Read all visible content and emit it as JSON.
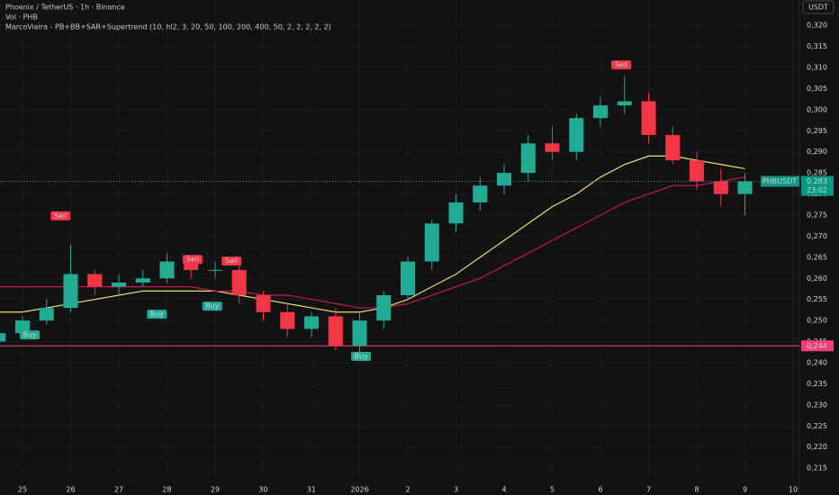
{
  "chart_data": {
    "type": "candlestick",
    "title": "Phoenix / TetherUS · 1h · Binance",
    "subtitle": "Vol · PHB",
    "indicator": "MarcoVieira - PB+BB+SAR+Supertrend (10, hl2, 3, 20, 50, 100, 200, 400, 50, 2, 2, 2, 2, 2)",
    "currency": "USDT",
    "x": [
      -0.5,
      0,
      0.5,
      1,
      1.5,
      2,
      2.5,
      3,
      3.5,
      4,
      4.5,
      5,
      5.5,
      6,
      6.5,
      7,
      7.5,
      8,
      8.5,
      9,
      9.5,
      10,
      10.5,
      11,
      11.5,
      12,
      12.5,
      13,
      13.5,
      14,
      14.5,
      15
    ],
    "open": [
      0.245,
      0.247,
      0.25,
      0.253,
      0.261,
      0.258,
      0.259,
      0.26,
      0.264,
      0.262,
      0.262,
      0.256,
      0.252,
      0.248,
      0.251,
      0.244,
      0.25,
      0.256,
      0.264,
      0.273,
      0.278,
      0.282,
      0.285,
      0.292,
      0.29,
      0.298,
      0.301,
      0.302,
      0.294,
      0.288,
      0.283,
      0.28
    ],
    "high": [
      0.249,
      0.251,
      0.255,
      0.268,
      0.262,
      0.261,
      0.262,
      0.266,
      0.265,
      0.264,
      0.263,
      0.257,
      0.254,
      0.252,
      0.253,
      0.252,
      0.257,
      0.265,
      0.274,
      0.28,
      0.284,
      0.287,
      0.294,
      0.296,
      0.299,
      0.303,
      0.308,
      0.304,
      0.296,
      0.29,
      0.286,
      0.285
    ],
    "low": [
      0.243,
      0.246,
      0.249,
      0.252,
      0.256,
      0.256,
      0.258,
      0.259,
      0.26,
      0.26,
      0.254,
      0.25,
      0.246,
      0.246,
      0.243,
      0.241,
      0.248,
      0.255,
      0.262,
      0.271,
      0.276,
      0.28,
      0.283,
      0.288,
      0.288,
      0.296,
      0.299,
      0.292,
      0.287,
      0.281,
      0.277,
      0.275
    ],
    "close": [
      0.247,
      0.25,
      0.253,
      0.261,
      0.258,
      0.259,
      0.26,
      0.264,
      0.262,
      0.262,
      0.256,
      0.252,
      0.248,
      0.251,
      0.244,
      0.25,
      0.256,
      0.264,
      0.273,
      0.278,
      0.282,
      0.285,
      0.292,
      0.29,
      0.298,
      0.301,
      0.302,
      0.294,
      0.288,
      0.283,
      0.28,
      0.283
    ],
    "up_color": "#22ab94",
    "down_color": "#f23645",
    "overlays": [
      {
        "color": "#e8e06a",
        "values": [
          0.252,
          0.252,
          0.253,
          0.254,
          0.255,
          0.256,
          0.257,
          0.257,
          0.257,
          0.257,
          0.256,
          0.255,
          0.254,
          0.253,
          0.252,
          0.252,
          0.253,
          0.255,
          0.258,
          0.261,
          0.265,
          0.269,
          0.273,
          0.277,
          0.28,
          0.284,
          0.287,
          0.289,
          0.289,
          0.288,
          0.287,
          0.286
        ]
      },
      {
        "color": "#c2185b",
        "values": [
          0.258,
          0.258,
          0.258,
          0.258,
          0.258,
          0.258,
          0.258,
          0.258,
          0.258,
          0.257,
          0.257,
          0.256,
          0.256,
          0.255,
          0.254,
          0.253,
          0.253,
          0.254,
          0.256,
          0.258,
          0.26,
          0.263,
          0.266,
          0.269,
          0.272,
          0.275,
          0.278,
          0.28,
          0.282,
          0.282,
          0.283,
          0.284
        ]
      }
    ],
    "signals": [
      {
        "text": "Sell",
        "x": 0.79,
        "y": 0.2748,
        "color": "#f23645"
      },
      {
        "text": "Sell",
        "x": 3.53,
        "y": 0.2645,
        "color": "#f23645"
      },
      {
        "text": "Sell",
        "x": 4.34,
        "y": 0.2641,
        "color": "#f23645"
      },
      {
        "text": "Sell",
        "x": 12.43,
        "y": 0.3106,
        "color": "#f23645"
      },
      {
        "text": "Buy",
        "x": 0.15,
        "y": 0.2466,
        "color": "#22ab94"
      },
      {
        "text": "Buy",
        "x": 2.79,
        "y": 0.2515,
        "color": "#22ab94"
      },
      {
        "text": "Buy",
        "x": 3.94,
        "y": 0.2534,
        "color": "#22ab94"
      },
      {
        "text": "Buy",
        "x": 7.03,
        "y": 0.2415,
        "color": "#22ab94"
      }
    ],
    "level": {
      "value": 0.244,
      "label": "0,244",
      "color": "#f23f7a"
    },
    "price_tag": {
      "symbol": "PHBUSDT",
      "price": {
        "value": 0.283,
        "label": "0,283"
      },
      "countdown": "23:02",
      "color": "#089981"
    },
    "xlim": [
      -0.467,
      16.13
    ],
    "xticks": [
      {
        "value": 0,
        "label": "25"
      },
      {
        "value": 1,
        "label": "26"
      },
      {
        "value": 2,
        "label": "27"
      },
      {
        "value": 3,
        "label": "28"
      },
      {
        "value": 4,
        "label": "29"
      },
      {
        "value": 5,
        "label": "30"
      },
      {
        "value": 6,
        "label": "31"
      },
      {
        "value": 7,
        "label": "2026"
      },
      {
        "value": 8,
        "label": "2"
      },
      {
        "value": 9,
        "label": "3"
      },
      {
        "value": 10,
        "label": "4"
      },
      {
        "value": 11,
        "label": "5"
      },
      {
        "value": 12,
        "label": "6"
      },
      {
        "value": 13,
        "label": "7"
      },
      {
        "value": 14,
        "label": "8"
      },
      {
        "value": 15,
        "label": "9"
      },
      {
        "value": 16,
        "label": "10"
      }
    ],
    "ylim": [
      0.2129,
      0.326
    ],
    "yticks": [
      {
        "value": 0.215,
        "label": "0,215"
      },
      {
        "value": 0.22,
        "label": "0,220"
      },
      {
        "value": 0.225,
        "label": "0,225"
      },
      {
        "value": 0.23,
        "label": "0,230"
      },
      {
        "value": 0.235,
        "label": "0,235"
      },
      {
        "value": 0.24,
        "label": "0,240"
      },
      {
        "value": 0.245,
        "label": "0,245"
      },
      {
        "value": 0.25,
        "label": "0,250"
      },
      {
        "value": 0.255,
        "label": "0,255"
      },
      {
        "value": 0.26,
        "label": "0,260"
      },
      {
        "value": 0.265,
        "label": "0,265"
      },
      {
        "value": 0.27,
        "label": "0,270"
      },
      {
        "value": 0.275,
        "label": "0,275"
      },
      {
        "value": 0.28,
        "label": "0,280"
      },
      {
        "value": 0.285,
        "label": "0,285"
      },
      {
        "value": 0.29,
        "label": "0,290"
      },
      {
        "value": 0.295,
        "label": "0,295"
      },
      {
        "value": 0.3,
        "label": "0,300"
      },
      {
        "value": 0.305,
        "label": "0,305"
      },
      {
        "value": 0.31,
        "label": "0,310"
      },
      {
        "value": 0.315,
        "label": "0,315"
      },
      {
        "value": 0.32,
        "label": "0,320"
      }
    ],
    "grid": true
  }
}
